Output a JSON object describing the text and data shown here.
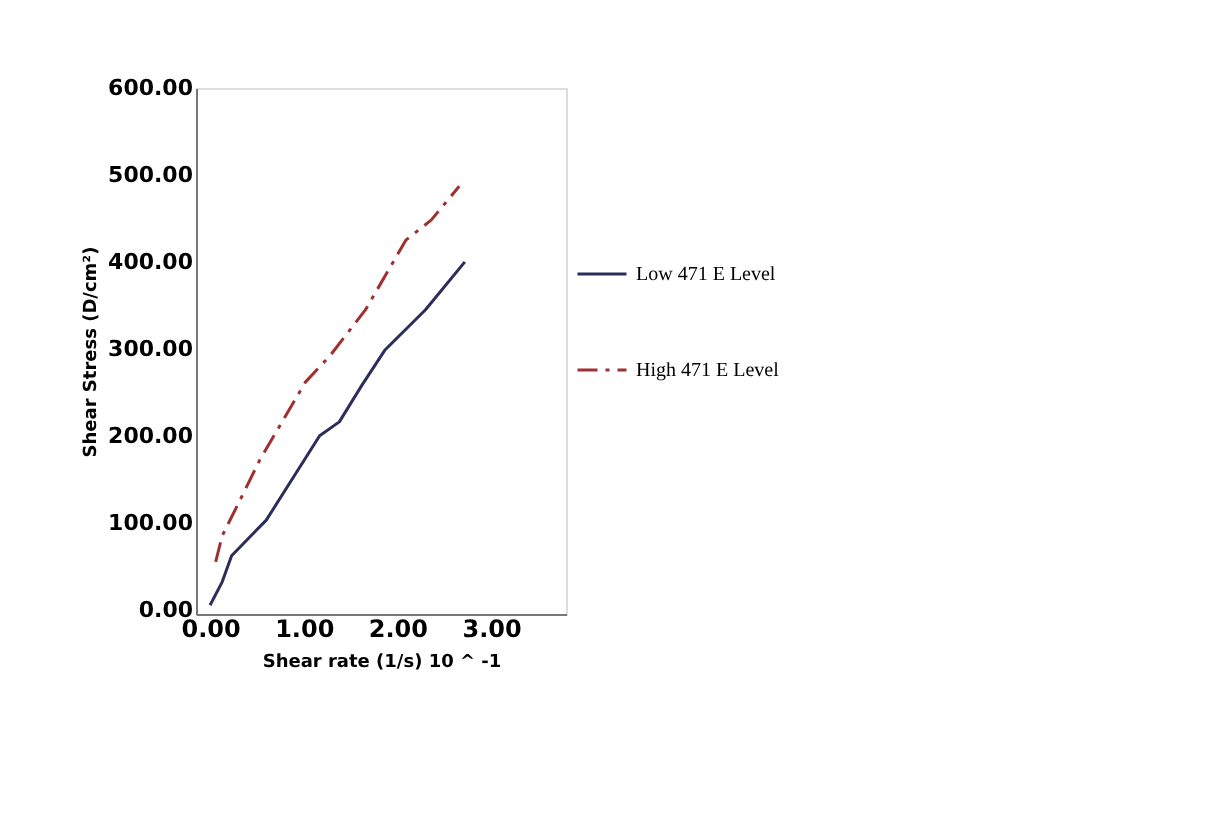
{
  "chart_data": {
    "type": "line",
    "xlabel": "Shear rate (1/s) 10 ^ -1",
    "ylabel": "Shear Stress (D/cm²)",
    "xlim": [
      -0.15,
      3.8
    ],
    "ylim": [
      -5,
      600
    ],
    "xticks": [
      {
        "value": 0,
        "label": "0.00"
      },
      {
        "value": 1,
        "label": "1.00"
      },
      {
        "value": 2,
        "label": "2.00"
      },
      {
        "value": 3,
        "label": "3.00"
      }
    ],
    "yticks": [
      {
        "value": 0,
        "label": "0.00"
      },
      {
        "value": 100,
        "label": "100.00"
      },
      {
        "value": 200,
        "label": "200.00"
      },
      {
        "value": 300,
        "label": "300.00"
      },
      {
        "value": 400,
        "label": "400.00"
      },
      {
        "value": 500,
        "label": "500.00"
      },
      {
        "value": 600,
        "label": "600.00"
      }
    ],
    "grid": false,
    "legend": "right",
    "marker": "none",
    "series": [
      {
        "name": "Low 471 E Level",
        "color": "#2b2d5a",
        "line_style": "solid",
        "x": [
          0,
          0.13,
          0.23,
          0.6,
          1.17,
          1.38,
          1.62,
          1.87,
          2.3,
          2.72
        ],
        "values": [
          5,
          32,
          62,
          103,
          200,
          216,
          258,
          299,
          345,
          400
        ]
      },
      {
        "name": "High 471 E Level",
        "color": "#a03030",
        "line_style": "dashdot",
        "x": [
          0.06,
          0.13,
          0.32,
          0.53,
          1.02,
          1.28,
          1.66,
          2.09,
          2.36,
          2.66
        ],
        "values": [
          55,
          85,
          126,
          172,
          262,
          292,
          345,
          425,
          448,
          487
        ]
      }
    ]
  }
}
